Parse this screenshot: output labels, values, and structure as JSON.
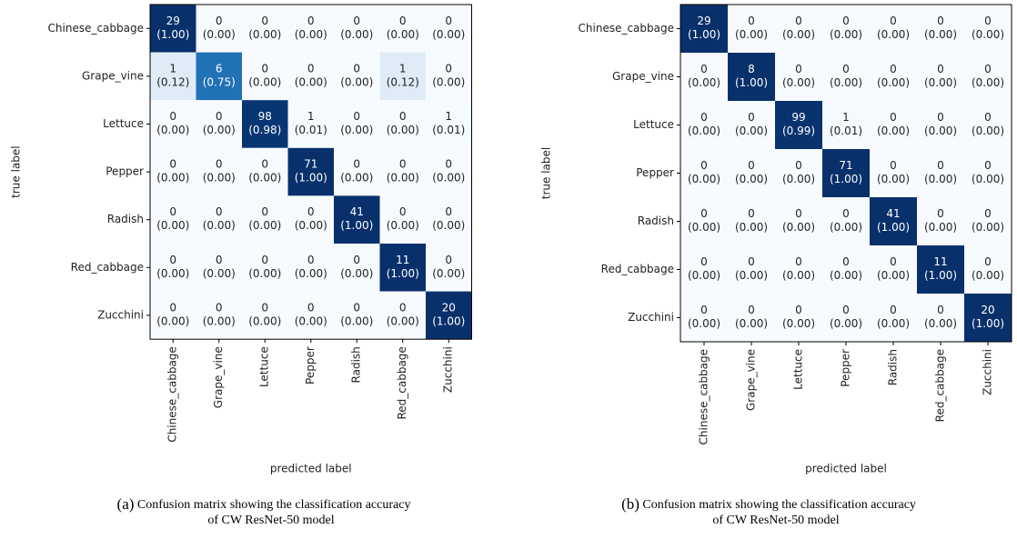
{
  "chart_data": [
    {
      "type": "heatmap",
      "xlabel": "predicted label",
      "ylabel": "true label",
      "categories": [
        "Chinese_cabbage",
        "Grape_vine",
        "Lettuce",
        "Pepper",
        "Radish",
        "Red_cabbage",
        "Zucchini"
      ],
      "values": [
        [
          29,
          0,
          0,
          0,
          0,
          0,
          0
        ],
        [
          1,
          6,
          0,
          0,
          0,
          1,
          0
        ],
        [
          0,
          0,
          98,
          1,
          0,
          0,
          1
        ],
        [
          0,
          0,
          0,
          71,
          0,
          0,
          0
        ],
        [
          0,
          0,
          0,
          0,
          41,
          0,
          0
        ],
        [
          0,
          0,
          0,
          0,
          0,
          11,
          0
        ],
        [
          0,
          0,
          0,
          0,
          0,
          0,
          20
        ]
      ],
      "normalized": [
        [
          1,
          0,
          0,
          0,
          0,
          0,
          0
        ],
        [
          0.12,
          0.75,
          0,
          0,
          0,
          0.12,
          0
        ],
        [
          0,
          0,
          0.98,
          0.01,
          0,
          0,
          0.01
        ],
        [
          0,
          0,
          0,
          1,
          0,
          0,
          0
        ],
        [
          0,
          0,
          0,
          0,
          1,
          0,
          0
        ],
        [
          0,
          0,
          0,
          0,
          0,
          1,
          0
        ],
        [
          0,
          0,
          0,
          0,
          0,
          0,
          1
        ]
      ],
      "normalized_labels": [
        [
          "(1.00)",
          "(0.00)",
          "(0.00)",
          "(0.00)",
          "(0.00)",
          "(0.00)",
          "(0.00)"
        ],
        [
          "(0.12)",
          "(0.75)",
          "(0.00)",
          "(0.00)",
          "(0.00)",
          "(0.12)",
          "(0.00)"
        ],
        [
          "(0.00)",
          "(0.00)",
          "(0.98)",
          "(0.01)",
          "(0.00)",
          "(0.00)",
          "(0.01)"
        ],
        [
          "(0.00)",
          "(0.00)",
          "(0.00)",
          "(1.00)",
          "(0.00)",
          "(0.00)",
          "(0.00)"
        ],
        [
          "(0.00)",
          "(0.00)",
          "(0.00)",
          "(0.00)",
          "(1.00)",
          "(0.00)",
          "(0.00)"
        ],
        [
          "(0.00)",
          "(0.00)",
          "(0.00)",
          "(0.00)",
          "(0.00)",
          "(1.00)",
          "(0.00)"
        ],
        [
          "(0.00)",
          "(0.00)",
          "(0.00)",
          "(0.00)",
          "(0.00)",
          "(0.00)",
          "(1.00)"
        ]
      ],
      "colormap": "Blues",
      "caption_label": "(a)",
      "caption": [
        "Confusion matrix showing the classification accuracy",
        "of CW ResNet-50 model"
      ]
    },
    {
      "type": "heatmap",
      "xlabel": "predicted label",
      "ylabel": "true label",
      "categories": [
        "Chinese_cabbage",
        "Grape_vine",
        "Lettuce",
        "Pepper",
        "Radish",
        "Red_cabbage",
        "Zucchini"
      ],
      "values": [
        [
          29,
          0,
          0,
          0,
          0,
          0,
          0
        ],
        [
          0,
          8,
          0,
          0,
          0,
          0,
          0
        ],
        [
          0,
          0,
          99,
          1,
          0,
          0,
          0
        ],
        [
          0,
          0,
          0,
          71,
          0,
          0,
          0
        ],
        [
          0,
          0,
          0,
          0,
          41,
          0,
          0
        ],
        [
          0,
          0,
          0,
          0,
          0,
          11,
          0
        ],
        [
          0,
          0,
          0,
          0,
          0,
          0,
          20
        ]
      ],
      "normalized": [
        [
          1,
          0,
          0,
          0,
          0,
          0,
          0
        ],
        [
          0,
          1,
          0,
          0,
          0,
          0,
          0
        ],
        [
          0,
          0,
          0.99,
          0.01,
          0,
          0,
          0
        ],
        [
          0,
          0,
          0,
          1,
          0,
          0,
          0
        ],
        [
          0,
          0,
          0,
          0,
          1,
          0,
          0
        ],
        [
          0,
          0,
          0,
          0,
          0,
          1,
          0
        ],
        [
          0,
          0,
          0,
          0,
          0,
          0,
          1
        ]
      ],
      "normalized_labels": [
        [
          "(1.00)",
          "(0.00)",
          "(0.00)",
          "(0.00)",
          "(0.00)",
          "(0.00)",
          "(0.00)"
        ],
        [
          "(0.00)",
          "(1.00)",
          "(0.00)",
          "(0.00)",
          "(0.00)",
          "(0.00)",
          "(0.00)"
        ],
        [
          "(0.00)",
          "(0.00)",
          "(0.99)",
          "(0.01)",
          "(0.00)",
          "(0.00)",
          "(0.00)"
        ],
        [
          "(0.00)",
          "(0.00)",
          "(0.00)",
          "(1.00)",
          "(0.00)",
          "(0.00)",
          "(0.00)"
        ],
        [
          "(0.00)",
          "(0.00)",
          "(0.00)",
          "(0.00)",
          "(1.00)",
          "(0.00)",
          "(0.00)"
        ],
        [
          "(0.00)",
          "(0.00)",
          "(0.00)",
          "(0.00)",
          "(0.00)",
          "(1.00)",
          "(0.00)"
        ],
        [
          "(0.00)",
          "(0.00)",
          "(0.00)",
          "(0.00)",
          "(0.00)",
          "(0.00)",
          "(1.00)"
        ]
      ],
      "colormap": "Blues",
      "caption_label": "(b)",
      "caption": [
        "Confusion matrix showing the classification accuracy",
        "of CW ResNet-50 model"
      ]
    }
  ]
}
